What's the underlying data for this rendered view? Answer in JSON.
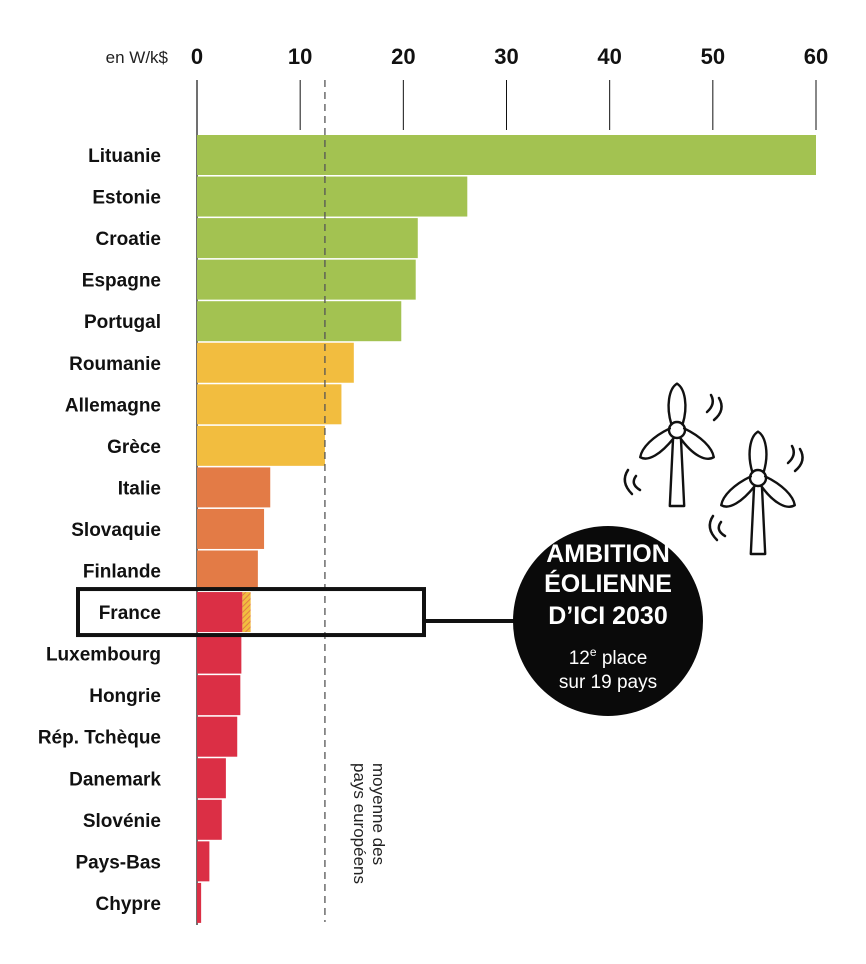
{
  "chart_data": {
    "type": "bar",
    "orientation": "horizontal",
    "unit_label": "en W/k$",
    "xlim": [
      0,
      60
    ],
    "ticks": [
      0,
      10,
      20,
      30,
      40,
      50,
      60
    ],
    "categories": [
      "Lituanie",
      "Estonie",
      "Croatie",
      "Espagne",
      "Portugal",
      "Roumanie",
      "Allemagne",
      "Grèce",
      "Italie",
      "Slovaquie",
      "Finlande",
      "France",
      "Luxembourg",
      "Hongrie",
      "Rép. Tchèque",
      "Danemark",
      "Slovénie",
      "Pays-Bas",
      "Chypre"
    ],
    "values": [
      60,
      26.2,
      21.4,
      21.2,
      19.8,
      15.2,
      14.0,
      12.4,
      7.1,
      6.5,
      5.9,
      4.4,
      4.3,
      4.2,
      3.9,
      2.8,
      2.4,
      1.2,
      0.4
    ],
    "france_extension": 0.8,
    "groups": [
      "green",
      "green",
      "green",
      "green",
      "green",
      "yellow",
      "yellow",
      "yellow",
      "orange",
      "orange",
      "orange",
      "red",
      "red",
      "red",
      "red",
      "red",
      "red",
      "red",
      "red"
    ],
    "colors": {
      "green": "#a3c251",
      "yellow": "#f2bd3f",
      "orange": "#e37b46",
      "red": "#db2f45"
    },
    "average": 12.4,
    "average_label": [
      "moyenne des",
      "pays européens"
    ],
    "highlight": "France"
  },
  "badge": {
    "lines": [
      "AMBITION",
      "ÉOLIENNE",
      "D’ICI 2030"
    ],
    "rank_number": "12",
    "rank_suffix": "e",
    "rank_rest": " place",
    "total": "sur 19 pays"
  }
}
